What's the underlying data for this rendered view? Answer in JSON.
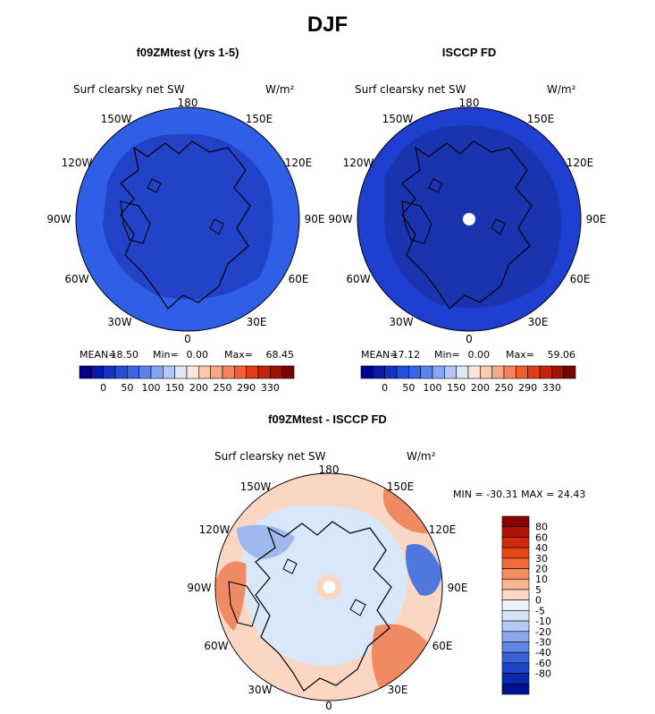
{
  "page_title": "DJF",
  "colors": {
    "model_blue": "#2f5fe6",
    "model_dark": "#2242c8",
    "obs_blue": "#1f3fd0",
    "obs_dark": "#1a34b0",
    "diff_base": "#d8e8f8",
    "diff_warm": "#fbd6c2",
    "diff_orange": "#f08a63",
    "diff_blue": "#9fb9ee",
    "diff_deep_blue": "#4f77de"
  },
  "panels": {
    "model": {
      "title": "f09ZMtest (yrs 1-5)",
      "field": "Surf clearsky net SW",
      "units": "W/m²",
      "lon_labels": [
        "180",
        "150E",
        "120E",
        "90E",
        "60E",
        "30E",
        "0",
        "30W",
        "60W",
        "90W",
        "120W",
        "150W"
      ],
      "stats": {
        "mean_label": "MEAN=",
        "mean": "18.50",
        "min_label": "Min=",
        "min": "0.00",
        "max_label": "Max=",
        "max": "68.45"
      }
    },
    "obs": {
      "title": "ISCCP FD",
      "field": "Surf clearsky net SW",
      "units": "W/m²",
      "lon_labels": [
        "180",
        "150E",
        "120E",
        "90E",
        "60E",
        "30E",
        "0",
        "30W",
        "60W",
        "90W",
        "120W",
        "150W"
      ],
      "stats": {
        "mean_label": "MEAN=",
        "mean": "17.12",
        "min_label": "Min=",
        "min": "0.00",
        "max_label": "Max=",
        "max": "59.06"
      }
    },
    "diff": {
      "title": "f09ZMtest - ISCCP FD",
      "field": "Surf clearsky net SW",
      "units": "W/m²",
      "lon_labels": [
        "180",
        "150E",
        "120E",
        "90E",
        "60E",
        "30E",
        "0",
        "30W",
        "60W",
        "90W",
        "120W",
        "150W"
      ],
      "minmax": "MIN = -30.31 MAX =  24.43"
    }
  },
  "colorbar_h": {
    "colors": [
      "#00008b",
      "#0a1aa8",
      "#1433c2",
      "#1f4fdc",
      "#3a66e8",
      "#5c84ee",
      "#86a6f2",
      "#b3c8f6",
      "#dde8fa",
      "#fde7dc",
      "#fbc9b1",
      "#f8a787",
      "#f5845d",
      "#f06033",
      "#e23d15",
      "#c7230b",
      "#a01005",
      "#7a0000"
    ],
    "labels": [
      "0",
      "50",
      "100",
      "150",
      "200",
      "250",
      "290",
      "330"
    ]
  },
  "colorbar_v": {
    "colors": [
      "#8b0000",
      "#b01405",
      "#d02a0c",
      "#e84818",
      "#f06a3a",
      "#f58e60",
      "#f9b491",
      "#fcd7c2",
      "#eef4fb",
      "#d6e4f8",
      "#b3c8f2",
      "#8aa8ec",
      "#5f86e4",
      "#3a62d8",
      "#1e42c8",
      "#0c28b0",
      "#00128f"
    ],
    "labels": [
      "80",
      "60",
      "40",
      "30",
      "20",
      "10",
      "5",
      "0",
      "-5",
      "-10",
      "-20",
      "-30",
      "-40",
      "-60",
      "-80"
    ]
  }
}
